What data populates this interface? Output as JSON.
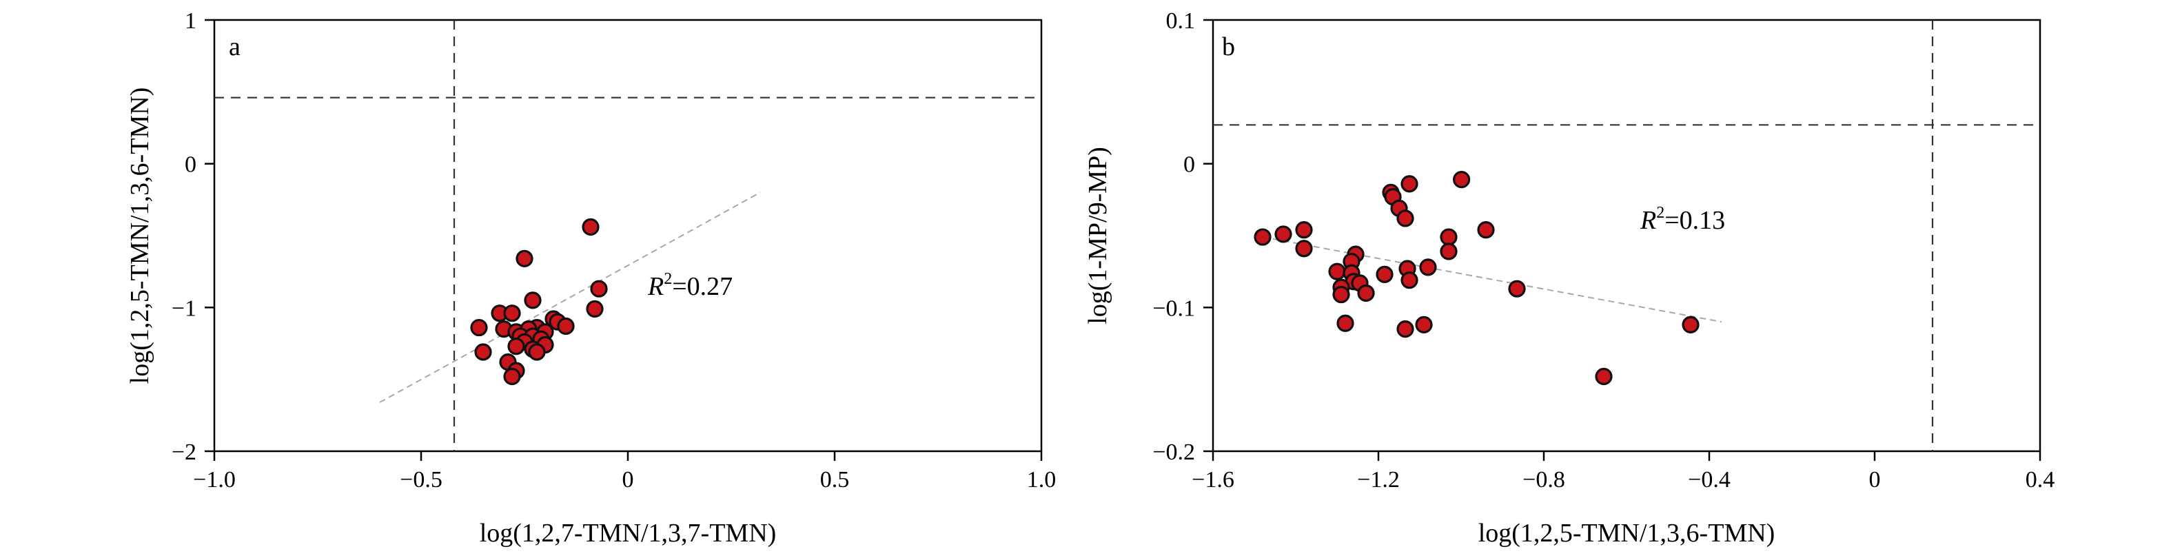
{
  "chart_data": [
    {
      "type": "scatter",
      "panel_label": "a",
      "xlabel": "log(1,2,7-TMN/1,3,7-TMN)",
      "ylabel": "log(1,2,5-TMN/1,3,6-TMN)",
      "xlim": [
        -1.0,
        1.0
      ],
      "ylim": [
        -2,
        1
      ],
      "xticks": [
        -1.0,
        -0.5,
        0,
        0.5,
        1.0
      ],
      "xtick_labels": [
        "−1.0",
        "−0.5",
        "0",
        "0.5",
        "1.0"
      ],
      "yticks": [
        -2,
        -1,
        0,
        1
      ],
      "ytick_labels": [
        "−2",
        "−1",
        "0",
        "1"
      ],
      "reference_lines": {
        "vertical_x": -0.42,
        "horizontal_y": 0.46
      },
      "trendline": {
        "x": [
          -0.6,
          0.32
        ],
        "y": [
          -1.66,
          -0.2
        ]
      },
      "r2_label": {
        "symbol": "R",
        "superscript": "2",
        "value_text": "=0.27"
      },
      "points": [
        {
          "x": -0.09,
          "y": -0.44
        },
        {
          "x": -0.25,
          "y": -0.66
        },
        {
          "x": -0.07,
          "y": -0.87
        },
        {
          "x": -0.23,
          "y": -0.95
        },
        {
          "x": -0.08,
          "y": -1.01
        },
        {
          "x": -0.31,
          "y": -1.04
        },
        {
          "x": -0.28,
          "y": -1.04
        },
        {
          "x": -0.18,
          "y": -1.08
        },
        {
          "x": -0.17,
          "y": -1.1
        },
        {
          "x": -0.15,
          "y": -1.13
        },
        {
          "x": -0.36,
          "y": -1.14
        },
        {
          "x": -0.3,
          "y": -1.15
        },
        {
          "x": -0.22,
          "y": -1.14
        },
        {
          "x": -0.27,
          "y": -1.17
        },
        {
          "x": -0.24,
          "y": -1.15
        },
        {
          "x": -0.2,
          "y": -1.17
        },
        {
          "x": -0.26,
          "y": -1.2
        },
        {
          "x": -0.23,
          "y": -1.2
        },
        {
          "x": -0.21,
          "y": -1.22
        },
        {
          "x": -0.25,
          "y": -1.24
        },
        {
          "x": -0.2,
          "y": -1.26
        },
        {
          "x": -0.27,
          "y": -1.27
        },
        {
          "x": -0.23,
          "y": -1.29
        },
        {
          "x": -0.22,
          "y": -1.31
        },
        {
          "x": -0.35,
          "y": -1.31
        },
        {
          "x": -0.29,
          "y": -1.38
        },
        {
          "x": -0.27,
          "y": -1.44
        },
        {
          "x": -0.28,
          "y": -1.48
        }
      ]
    },
    {
      "type": "scatter",
      "panel_label": "b",
      "xlabel": "log(1,2,5-TMN/1,3,6-TMN)",
      "ylabel": "log(1-MP/9-MP)",
      "xlim": [
        -1.6,
        0.4
      ],
      "ylim": [
        -0.2,
        0.1
      ],
      "xticks": [
        -1.6,
        -1.2,
        -0.8,
        -0.4,
        0,
        0.4
      ],
      "xtick_labels": [
        "−1.6",
        "−1.2",
        "−0.8",
        "−0.4",
        "0",
        "0.4"
      ],
      "yticks": [
        -0.2,
        -0.1,
        0,
        0.1
      ],
      "ytick_labels": [
        "−0.2",
        "−0.1",
        "0",
        "0.1"
      ],
      "reference_lines": {
        "vertical_x": 0.14,
        "horizontal_y": 0.027
      },
      "trendline": {
        "x": [
          -1.48,
          -0.37
        ],
        "y": [
          -0.051,
          -0.11
        ]
      },
      "r2_label": {
        "symbol": "R",
        "superscript": "2",
        "value_text": "=0.13"
      },
      "points": [
        {
          "x": -0.999,
          "y": -0.011
        },
        {
          "x": -1.125,
          "y": -0.014
        },
        {
          "x": -1.17,
          "y": -0.02
        },
        {
          "x": -1.165,
          "y": -0.023
        },
        {
          "x": -1.15,
          "y": -0.031
        },
        {
          "x": -1.135,
          "y": -0.038
        },
        {
          "x": -1.38,
          "y": -0.046
        },
        {
          "x": -0.94,
          "y": -0.046
        },
        {
          "x": -1.43,
          "y": -0.049
        },
        {
          "x": -1.48,
          "y": -0.051
        },
        {
          "x": -1.03,
          "y": -0.051
        },
        {
          "x": -1.38,
          "y": -0.059
        },
        {
          "x": -1.255,
          "y": -0.063
        },
        {
          "x": -1.03,
          "y": -0.061
        },
        {
          "x": -1.265,
          "y": -0.068
        },
        {
          "x": -1.08,
          "y": -0.072
        },
        {
          "x": -1.13,
          "y": -0.073
        },
        {
          "x": -1.3,
          "y": -0.075
        },
        {
          "x": -1.265,
          "y": -0.076
        },
        {
          "x": -1.185,
          "y": -0.077
        },
        {
          "x": -1.26,
          "y": -0.082
        },
        {
          "x": -1.125,
          "y": -0.081
        },
        {
          "x": -1.245,
          "y": -0.083
        },
        {
          "x": -1.29,
          "y": -0.086
        },
        {
          "x": -1.29,
          "y": -0.091
        },
        {
          "x": -1.23,
          "y": -0.09
        },
        {
          "x": -0.865,
          "y": -0.087
        },
        {
          "x": -1.28,
          "y": -0.111
        },
        {
          "x": -1.09,
          "y": -0.112
        },
        {
          "x": -1.135,
          "y": -0.115
        },
        {
          "x": -0.445,
          "y": -0.112
        },
        {
          "x": -0.655,
          "y": -0.148
        }
      ]
    }
  ]
}
